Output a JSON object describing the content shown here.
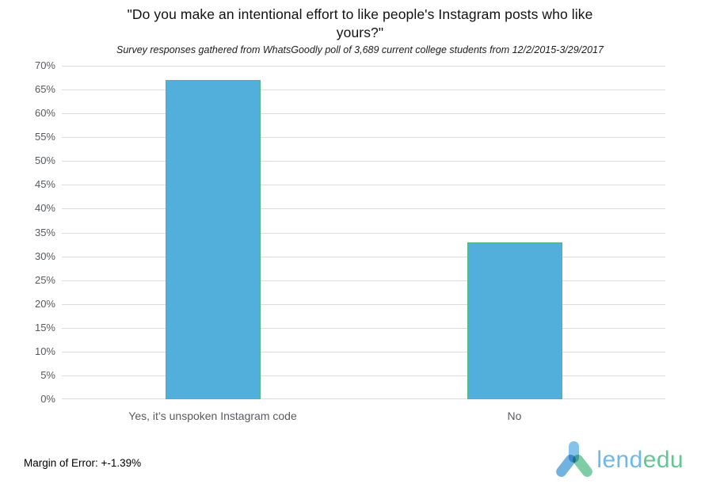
{
  "header": {
    "title_lines": [
      "\"Do you make an intentional effort to like people's Instagram posts who like",
      "yours?\""
    ],
    "subtitle": "Survey responses gathered from WhatsGoodly poll of 3,689 current college students from 12/2/2015-3/29/2017"
  },
  "footer": {
    "margin_of_error": "Margin of Error: +-1.39%",
    "logo": {
      "lend": "lend",
      "edu": "edu"
    }
  },
  "colors": {
    "bar_fill": "#52aedb",
    "bar_border": "#54b87c",
    "gridline": "#dcdcdc",
    "axis_text": "#565a5f",
    "title_text": "#121212",
    "logo_blue": "#6eb9e7",
    "logo_green": "#67c493"
  },
  "chart_data": {
    "type": "bar",
    "title": "\"Do you make an intentional effort to like people's Instagram posts who like yours?\"",
    "subtitle": "Survey responses gathered from WhatsGoodly poll of 3,689 current college students from 12/2/2015-3/29/2017",
    "categories": [
      "Yes, it’s unspoken Instagram code",
      "No"
    ],
    "values": [
      67,
      33
    ],
    "unit": "%",
    "xlabel": "",
    "ylabel": "",
    "ylim": [
      0,
      70
    ],
    "ytick_step": 5,
    "ytick_labels": [
      "0%",
      "5%",
      "10%",
      "15%",
      "20%",
      "25%",
      "30%",
      "35%",
      "40%",
      "45%",
      "50%",
      "55%",
      "60%",
      "65%",
      "70%"
    ],
    "grid": true,
    "legend": false,
    "bar_color": "#52aedb",
    "source_note": "Margin of Error: +-1.39%"
  }
}
